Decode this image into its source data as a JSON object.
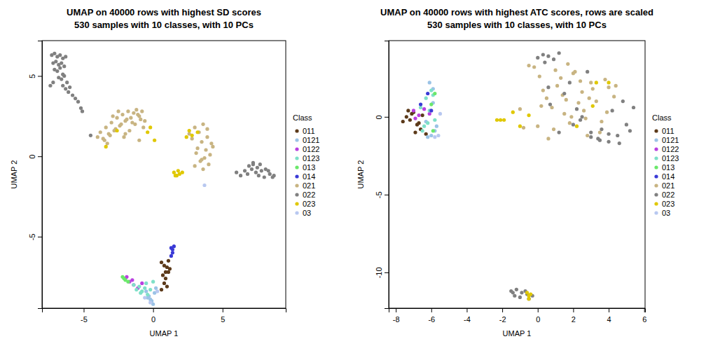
{
  "chart_data": [
    {
      "type": "scatter",
      "title": "UMAP on 40000 rows with highest SD scores",
      "subtitle": "530 samples with 10 classes, with 10 PCs",
      "x_label": "UMAP 1",
      "y_label": "UMAP 2",
      "legend_title": "Class",
      "legend": "right",
      "xlim": [
        -8.0,
        9.55
      ],
      "ylim": [
        -9.45,
        7.2
      ],
      "xticks": [
        -5,
        0,
        5
      ],
      "yticks": [
        -5,
        0,
        5
      ],
      "series": [
        {
          "name": "011",
          "color": "#5c3a1a",
          "x": [
            0.6,
            0.8,
            1.0,
            1.1,
            0.7,
            0.9,
            1.2,
            0.8,
            1.0,
            0.6,
            1.1,
            0.9
          ],
          "values": [
            -6.6,
            -6.8,
            -6.9,
            -7.2,
            -7.4,
            -7.6,
            -7.0,
            -7.9,
            -8.1,
            -8.3,
            -6.5,
            -7.2
          ]
        },
        {
          "name": "0121",
          "color": "#9bc3e6",
          "x": [
            -0.5,
            -0.3,
            -0.1,
            0.0,
            -0.2,
            0.1,
            -0.4,
            0.2
          ],
          "values": [
            -8.4,
            -8.7,
            -9.0,
            -9.2,
            -8.9,
            -8.5,
            -8.8,
            -8.2
          ]
        },
        {
          "name": "0122",
          "color": "#b940e0",
          "x": [
            -2.0,
            -1.7,
            -1.4,
            -1.1,
            -0.8,
            -1.5,
            -1.9
          ],
          "values": [
            -7.6,
            -7.8,
            -8.0,
            -8.2,
            -7.9,
            -7.7,
            -7.5
          ]
        },
        {
          "name": "0123",
          "color": "#7fe0c8",
          "x": [
            -1.4,
            -1.2,
            -1.0,
            -0.8,
            -0.6,
            -0.4,
            -0.2,
            0.0,
            -0.9,
            -0.5
          ],
          "values": [
            -8.0,
            -8.3,
            -8.1,
            -8.4,
            -8.2,
            -8.6,
            -8.3,
            -7.8,
            -8.5,
            -7.9
          ]
        },
        {
          "name": "013",
          "color": "#6ae86a",
          "x": [
            -2.2,
            -2.0,
            -1.8,
            -2.1
          ],
          "values": [
            -7.5,
            -7.7,
            -7.8,
            -7.6
          ]
        },
        {
          "name": "014",
          "color": "#3a3ad6",
          "x": [
            1.3,
            1.4,
            1.4,
            1.5,
            1.3
          ],
          "values": [
            -5.7,
            -5.8,
            -6.0,
            -5.6,
            -6.2
          ]
        },
        {
          "name": "021",
          "color": "#c8b482",
          "x": [
            -4.0,
            -3.8,
            -3.6,
            -3.4,
            -3.2,
            -3.0,
            -2.8,
            -2.6,
            -2.4,
            -2.2,
            -2.0,
            -1.8,
            -1.6,
            -1.4,
            -1.2,
            -1.0,
            -0.8,
            -0.6,
            -3.5,
            -3.1,
            -2.7,
            -2.3,
            -1.9,
            -1.5,
            -1.1,
            -0.7,
            -2.9,
            -2.5,
            -2.1,
            -1.7,
            -1.3,
            -0.9,
            -3.3,
            -2.0,
            -1.0,
            3.0,
            3.3,
            3.6,
            3.9,
            4.2,
            3.2,
            3.5,
            3.8,
            4.1,
            3.4,
            3.7,
            4.0,
            2.8,
            3.1,
            3.6,
            4.3,
            3.9,
            2.6,
            3.0,
            3.5
          ],
          "values": [
            1.2,
            1.5,
            1.1,
            1.8,
            1.4,
            2.1,
            1.6,
            2.4,
            1.9,
            2.6,
            2.2,
            2.8,
            2.4,
            2.7,
            2.9,
            2.5,
            2.8,
            2.2,
            1.0,
            1.3,
            1.7,
            2.0,
            2.3,
            2.1,
            2.6,
            1.8,
            2.5,
            2.8,
            1.2,
            1.6,
            2.0,
            2.3,
            0.8,
            1.4,
            1.0,
            1.8,
            1.5,
            2.0,
            1.2,
            0.8,
            0.5,
            0.9,
            0.4,
            0.1,
            -0.3,
            -0.1,
            -0.5,
            1.1,
            0.2,
            -0.8,
            0.6,
            1.7,
            1.4,
            -0.6,
            -0.2
          ]
        },
        {
          "name": "022",
          "color": "#808080",
          "x": [
            -7.3,
            -7.1,
            -6.9,
            -6.7,
            -6.5,
            -6.3,
            -7.2,
            -7.0,
            -6.8,
            -6.6,
            -6.4,
            -7.1,
            -6.9,
            -6.7,
            -6.5,
            -6.8,
            -6.6,
            -6.4,
            -6.2,
            -6.5,
            -6.3,
            -6.1,
            -6.0,
            -5.8,
            -5.6,
            -5.4,
            -5.2,
            -5.1,
            -7.4,
            -7.2,
            -4.5,
            6.0,
            6.3,
            6.6,
            6.9,
            7.2,
            7.5,
            7.8,
            8.1,
            8.4,
            8.7,
            6.8,
            7.1,
            7.4,
            7.7,
            8.0,
            8.3,
            8.6,
            7.2,
            7.6
          ],
          "values": [
            6.3,
            6.4,
            6.2,
            6.3,
            6.1,
            6.2,
            5.8,
            5.9,
            5.7,
            5.8,
            5.6,
            5.4,
            5.3,
            5.5,
            5.1,
            4.9,
            4.8,
            5.0,
            4.6,
            4.4,
            4.2,
            4.0,
            4.3,
            3.8,
            3.6,
            3.4,
            3.0,
            2.8,
            4.4,
            4.6,
            1.3,
            -1.0,
            -1.2,
            -0.9,
            -0.6,
            -0.5,
            -0.7,
            -0.9,
            -0.8,
            -1.1,
            -1.2,
            -1.1,
            -0.8,
            -1.0,
            -0.5,
            -1.3,
            -0.9,
            -1.3,
            -0.4,
            -1.2
          ]
        },
        {
          "name": "023",
          "color": "#e0c800",
          "x": [
            -3.4,
            -2.6,
            -0.4,
            0.1,
            -0.2,
            1.5,
            1.7,
            1.9,
            2.1,
            1.6,
            1.8,
            2.4,
            2.8,
            2.6,
            3.2
          ],
          "values": [
            0.6,
            1.6,
            1.5,
            1.0,
            1.8,
            -1.0,
            -1.2,
            -1.1,
            -1.0,
            -1.2,
            -0.9,
            1.2,
            1.3,
            1.6,
            1.5
          ]
        },
        {
          "name": "03",
          "color": "#b8c8f0",
          "x": [
            3.7,
            -0.2,
            0.3,
            -0.6
          ],
          "values": [
            -1.8,
            -9.1,
            -8.4,
            -8.8
          ]
        }
      ]
    },
    {
      "type": "scatter",
      "title": "UMAP on 40000 rows with highest ATC scores, rows are scaled",
      "subtitle": "530 samples with 10 classes, with 10 PCs",
      "x_label": "UMAP 1",
      "y_label": "UMAP 2",
      "legend_title": "Class",
      "legend": "right",
      "xlim": [
        -8.4,
        6.05
      ],
      "ylim": [
        -12.3,
        4.9
      ],
      "xticks": [
        -8,
        -6,
        -4,
        -2,
        0,
        2,
        4,
        6
      ],
      "yticks": [
        -10,
        -5,
        0
      ],
      "series": [
        {
          "name": "011",
          "color": "#5c3a1a",
          "x": [
            -7.6,
            -7.4,
            -7.2,
            -7.0,
            -6.8,
            -6.6,
            -7.3,
            -6.9,
            -6.5,
            -7.1,
            -6.7,
            -6.3
          ],
          "values": [
            -0.3,
            0.0,
            -0.2,
            0.3,
            -0.5,
            -0.8,
            0.4,
            -1.0,
            0.1,
            0.2,
            -0.4,
            -1.1
          ]
        },
        {
          "name": "0121",
          "color": "#9bc3e6",
          "x": [
            -6.2,
            -6.0,
            -5.8,
            -5.9,
            -6.1,
            -5.7,
            -6.3,
            -5.9
          ],
          "values": [
            -1.3,
            -1.2,
            -0.9,
            1.8,
            2.2,
            -0.6,
            -0.3,
            0.9
          ]
        },
        {
          "name": "0122",
          "color": "#b940e0",
          "x": [
            -7.0,
            -6.7,
            -6.4,
            -6.1,
            -6.9
          ],
          "values": [
            0.4,
            0.1,
            0.5,
            0.2,
            -0.1
          ]
        },
        {
          "name": "0123",
          "color": "#7fe0c8",
          "x": [
            -6.6,
            -6.3,
            -6.0,
            -5.8,
            -6.4,
            -6.1,
            -5.9,
            -6.5,
            -6.2
          ],
          "values": [
            0.6,
            1.2,
            1.7,
            -0.2,
            -0.6,
            0.4,
            1.4,
            -0.9,
            -0.4
          ]
        },
        {
          "name": "013",
          "color": "#6ae86a",
          "x": [
            -5.8,
            -5.9,
            -6.0
          ],
          "values": [
            1.5,
            -0.9,
            0.8
          ]
        },
        {
          "name": "014",
          "color": "#3a3ad6",
          "x": [
            -6.6,
            -6.2,
            -6.0
          ],
          "values": [
            0.8,
            1.5,
            0.4
          ]
        },
        {
          "name": "021",
          "color": "#c8b482",
          "x": [
            -1.0,
            -0.5,
            0.0,
            0.5,
            1.0,
            1.5,
            2.0,
            2.5,
            3.0,
            3.5,
            4.0,
            4.4,
            -0.2,
            0.3,
            0.8,
            1.3,
            1.8,
            2.3,
            2.8,
            3.3,
            3.8,
            4.3,
            0.6,
            1.1,
            1.6,
            2.1,
            2.6,
            3.1,
            3.6,
            0.2,
            0.9,
            1.4,
            1.9,
            2.4,
            2.9,
            -0.8,
            0.1,
            1.7,
            2.7,
            3.9
          ],
          "values": [
            0.5,
            3.3,
            -0.6,
            1.2,
            3.0,
            0.2,
            2.8,
            1.6,
            2.2,
            -1.0,
            1.9,
            2.0,
            3.2,
            1.7,
            0.6,
            2.5,
            -0.4,
            0.9,
            -1.2,
            1.0,
            2.4,
            1.3,
            -1.4,
            2.0,
            1.1,
            2.9,
            0.4,
            1.8,
            -0.3,
            0.7,
            -0.8,
            1.4,
            0.0,
            2.3,
            1.2,
            -0.7,
            2.6,
            3.4,
            -0.1,
            0.3
          ]
        },
        {
          "name": "022",
          "color": "#808080",
          "x": [
            0.0,
            0.3,
            0.6,
            0.9,
            1.2,
            0.4,
            0.7,
            1.5,
            2.0,
            2.5,
            3.0,
            3.5,
            4.0,
            4.5,
            5.0,
            5.4,
            4.8,
            4.2,
            3.6,
            3.0,
            2.4,
            1.8,
            1.2,
            0.6,
            5.2,
            4.6,
            4.0,
            3.4,
            2.8,
            2.2,
            -1.5,
            -1.2,
            -0.9,
            -0.6,
            -0.3,
            -1.3,
            -1.0,
            -0.7,
            -0.5,
            -1.4
          ],
          "values": [
            3.8,
            4.0,
            3.9,
            3.7,
            4.1,
            3.5,
            0.8,
            1.5,
            -0.5,
            0.0,
            -1.3,
            -1.5,
            -1.6,
            -1.2,
            -0.5,
            0.6,
            1.0,
            0.4,
            -0.8,
            -1.0,
            -0.2,
            2.2,
            -1.0,
            1.9,
            -0.9,
            -1.7,
            -1.1,
            -1.4,
            2.9,
            0.5,
            -11.2,
            -11.1,
            -11.3,
            -11.4,
            -11.5,
            -11.5,
            -11.6,
            -11.2,
            -11.7,
            -11.3
          ]
        },
        {
          "name": "023",
          "color": "#e0c800",
          "x": [
            -2.3,
            -2.1,
            -1.9,
            -1.4,
            -1.0,
            -0.5,
            2.2,
            3.1,
            3.3,
            4.0,
            -0.6,
            -0.5,
            -0.4,
            -0.5
          ],
          "values": [
            -0.2,
            -0.2,
            -0.2,
            0.3,
            -0.6,
            0.1,
            -0.6,
            0.7,
            2.2,
            2.2,
            -11.3,
            -11.5,
            -11.4,
            -11.7
          ]
        },
        {
          "name": "03",
          "color": "#b8c8f0",
          "x": [
            -5.8,
            -5.6,
            -5.5
          ],
          "values": [
            -1.3,
            -1.2,
            0.2
          ]
        }
      ]
    }
  ]
}
